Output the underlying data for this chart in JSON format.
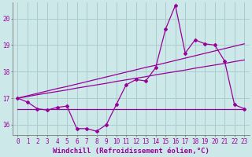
{
  "background_color": "#cce8e8",
  "line_color": "#990099",
  "grid_color": "#aacccc",
  "xlabel": "Windchill (Refroidissement éolien,°C)",
  "xlabel_fontsize": 6.5,
  "tick_fontsize": 5.5,
  "ylabel_ticks": [
    16,
    17,
    18,
    19,
    20
  ],
  "xlim": [
    -0.5,
    23.5
  ],
  "ylim": [
    15.6,
    20.6
  ],
  "x": [
    0,
    1,
    2,
    3,
    4,
    5,
    6,
    7,
    8,
    9,
    10,
    11,
    12,
    13,
    14,
    15,
    16,
    17,
    18,
    19,
    20,
    21,
    22,
    23
  ],
  "y_main": [
    17.0,
    16.85,
    16.6,
    16.55,
    16.65,
    16.7,
    15.85,
    15.85,
    15.75,
    16.0,
    16.75,
    17.5,
    17.7,
    17.65,
    18.15,
    19.6,
    20.5,
    18.7,
    19.2,
    19.05,
    19.0,
    18.4,
    16.75,
    16.6
  ],
  "y_low": [
    16.6,
    16.6,
    16.6,
    16.6,
    16.6,
    16.6,
    16.6,
    16.6,
    16.6,
    16.6,
    16.6,
    16.6,
    16.6,
    16.6,
    16.6,
    16.6,
    16.6,
    16.6,
    16.6,
    16.6,
    16.6,
    16.6,
    16.6,
    16.6
  ],
  "y_trend1": [
    17.0,
    17.06,
    17.13,
    17.19,
    17.25,
    17.31,
    17.38,
    17.44,
    17.5,
    17.56,
    17.63,
    17.69,
    17.75,
    17.81,
    17.88,
    17.94,
    18.0,
    18.06,
    18.13,
    18.19,
    18.25,
    18.31,
    18.38,
    18.44
  ],
  "y_trend2": [
    17.0,
    17.09,
    17.18,
    17.27,
    17.36,
    17.44,
    17.53,
    17.62,
    17.71,
    17.8,
    17.89,
    17.98,
    18.07,
    18.16,
    18.24,
    18.33,
    18.42,
    18.51,
    18.6,
    18.69,
    18.78,
    18.87,
    18.96,
    19.05
  ]
}
